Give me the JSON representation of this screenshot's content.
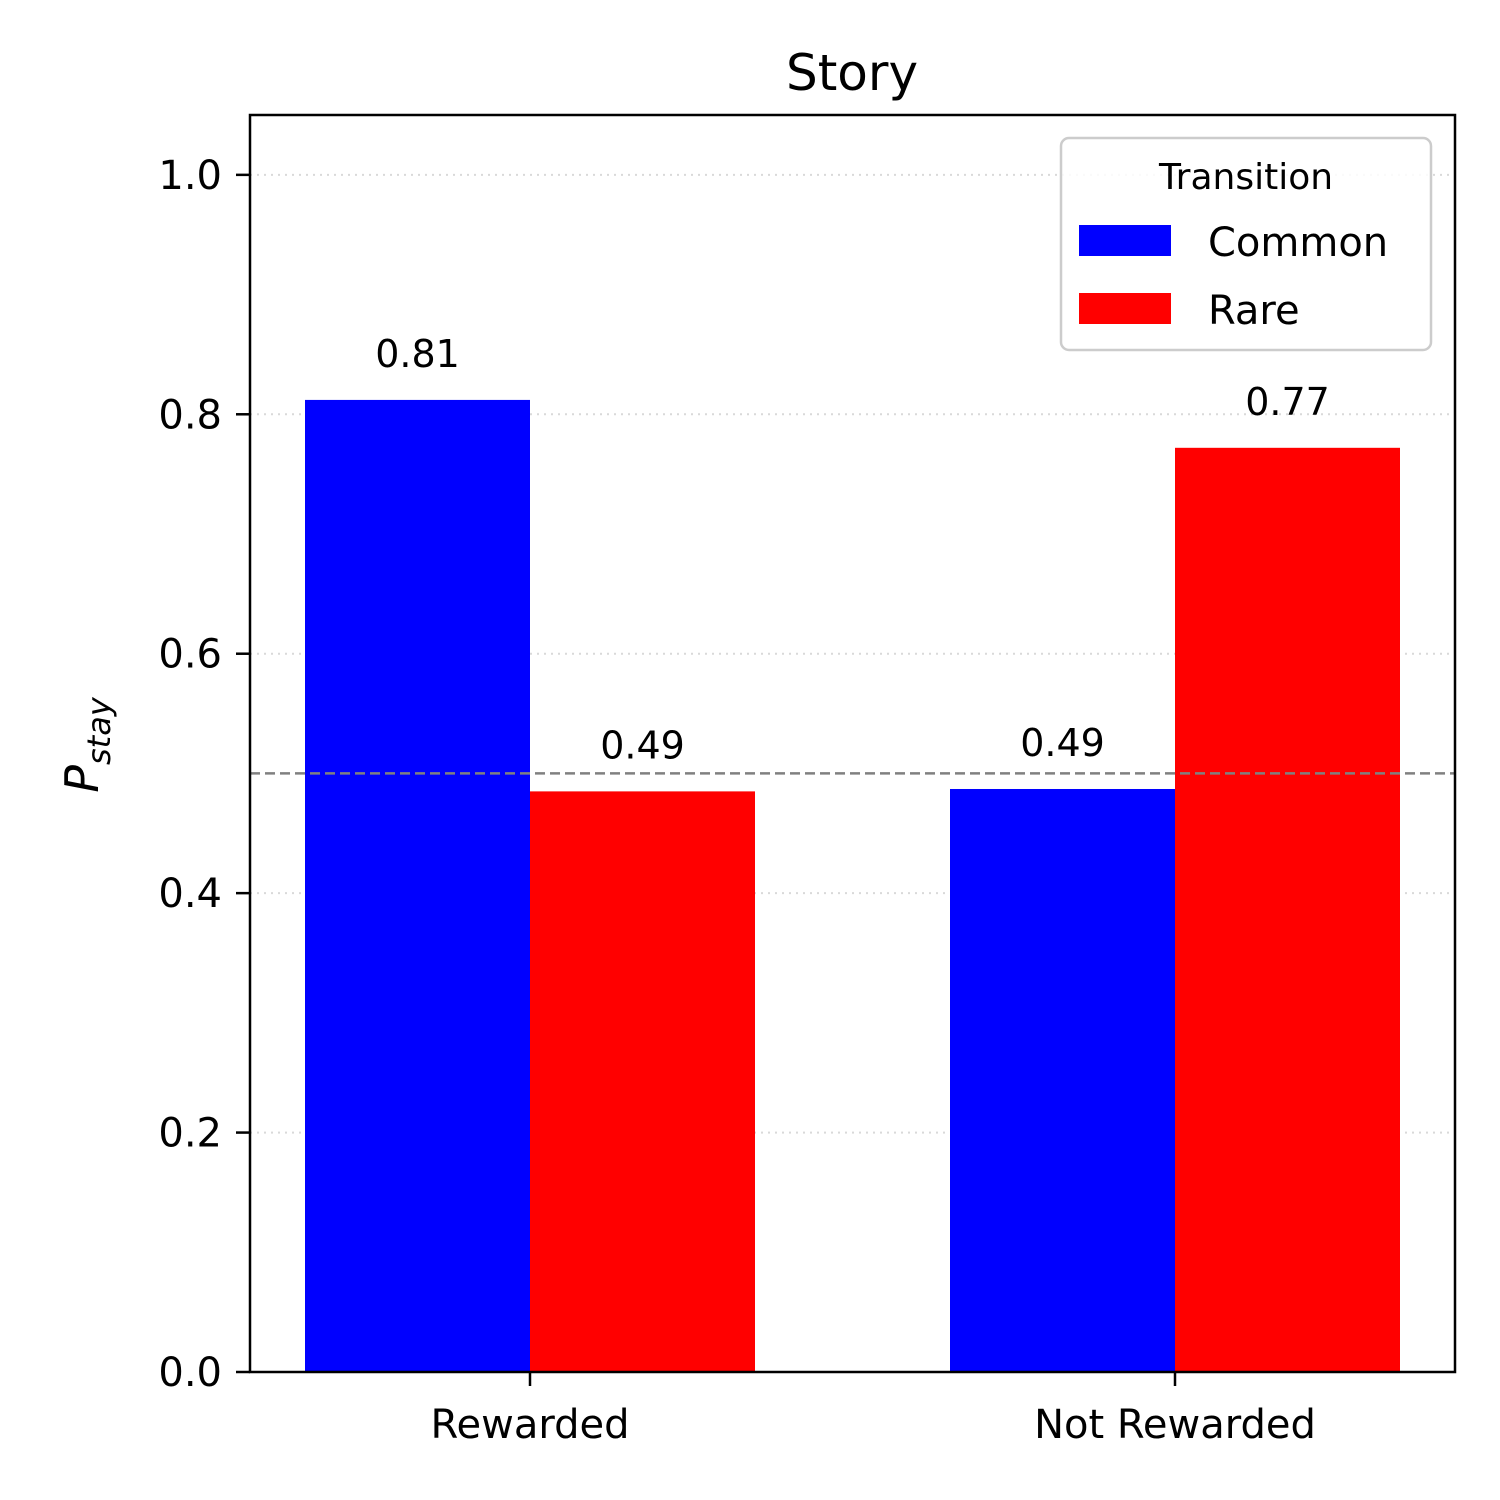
{
  "chart_data": {
    "type": "bar",
    "title": "Story",
    "xlabel": "",
    "ylabel": "P",
    "ylabel_subscript": "stay",
    "categories": [
      "Rewarded",
      "Not Rewarded"
    ],
    "series": [
      {
        "name": "Common",
        "color": "#0000ff",
        "values": [
          0.812,
          0.487
        ]
      },
      {
        "name": "Rare",
        "color": "#ff0000",
        "values": [
          0.485,
          0.772
        ]
      }
    ],
    "data_labels": [
      [
        "0.81",
        "0.49"
      ],
      [
        "0.49",
        "0.77"
      ]
    ],
    "ylim": [
      0,
      1.05
    ],
    "yticks": [
      0.0,
      0.2,
      0.4,
      0.6,
      0.8,
      1.0
    ],
    "ytick_labels": [
      "0.0",
      "0.2",
      "0.4",
      "0.6",
      "0.8",
      "1.0"
    ],
    "reference_line": {
      "y": 0.5,
      "style": "dashed",
      "color": "#808080"
    },
    "grid": {
      "axis": "y",
      "style": "dotted"
    },
    "legend": {
      "title": "Transition",
      "placement": "top-right"
    }
  }
}
